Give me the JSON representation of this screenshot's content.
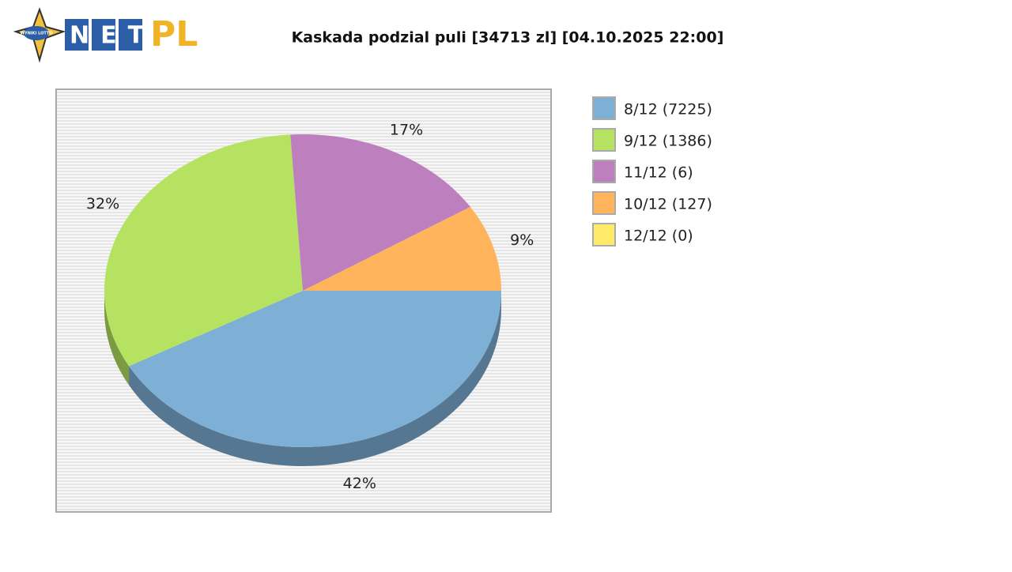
{
  "logo": {
    "badge": "WYNIKI LOTTO",
    "net": "NET",
    "pl": "PL"
  },
  "chart_data": {
    "type": "pie",
    "title": "Kaskada podzial puli [34713 zl] [04.10.2025 22:00]",
    "categories": [
      "8/12 (7225)",
      "9/12 (1386)",
      "11/12 (6)",
      "10/12 (127)",
      "12/12 (0)"
    ],
    "values": [
      42,
      32,
      17,
      9,
      0
    ],
    "value_labels": [
      "42%",
      "32%",
      "17%",
      "9%",
      null
    ],
    "colors": [
      "#7eafd5",
      "#b5e261",
      "#bd7fbd",
      "#ffb45c",
      "#ffea6a"
    ],
    "legend": "right"
  }
}
